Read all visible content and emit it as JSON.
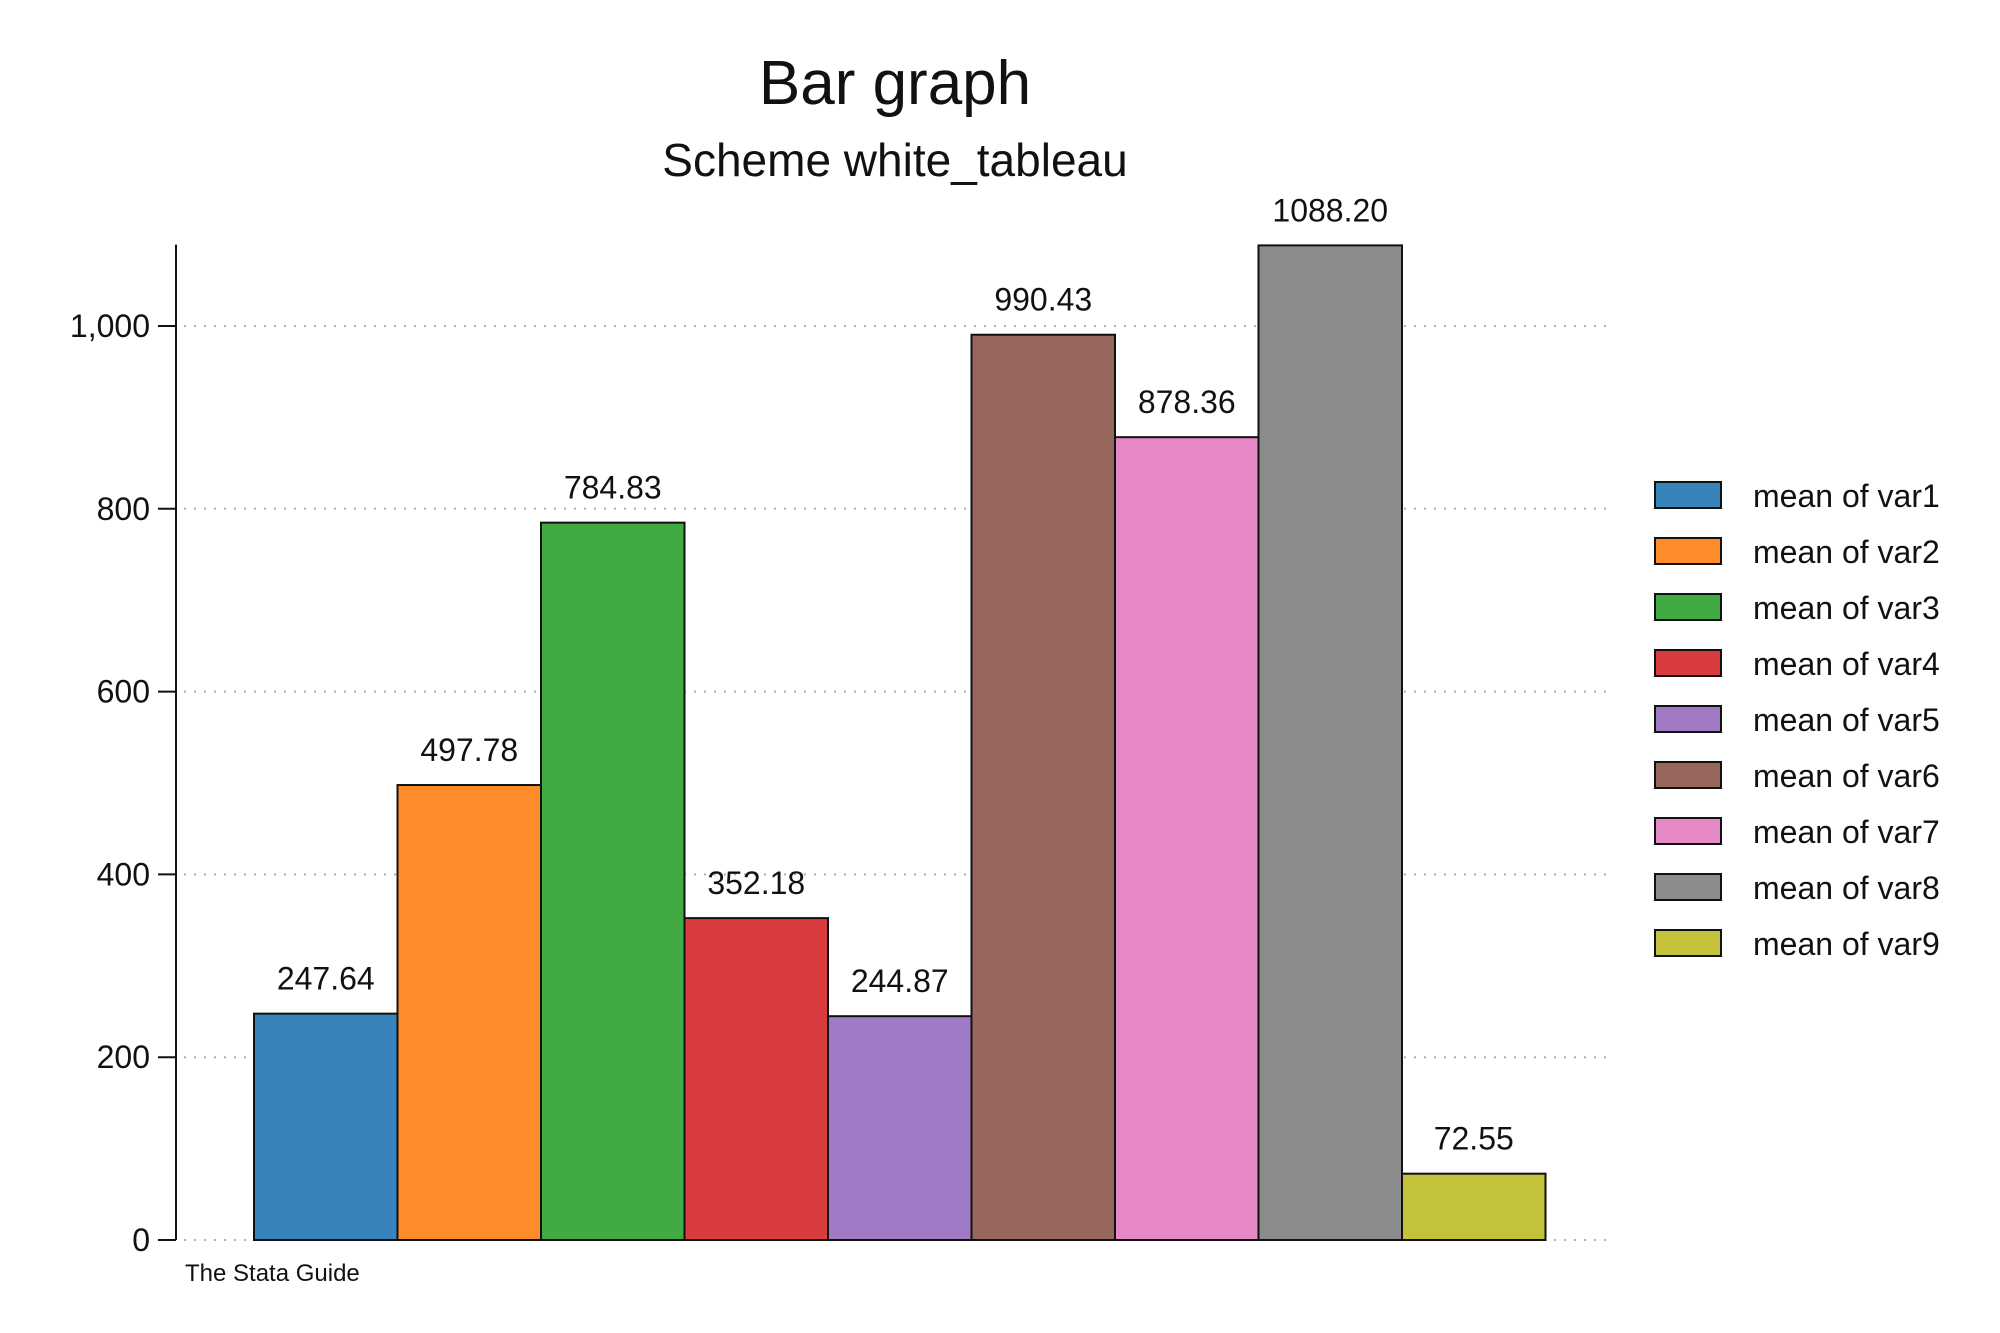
{
  "chart_data": {
    "type": "bar",
    "title": "Bar graph",
    "subtitle": "Scheme white_tableau",
    "note": "The Stata Guide",
    "ylim": [
      0,
      1100
    ],
    "yticks": [
      0,
      200,
      400,
      600,
      800,
      1000
    ],
    "ytick_labels": [
      "0",
      "200",
      "400",
      "600",
      "800",
      "1,000"
    ],
    "grid": true,
    "legend_position": "right",
    "series": [
      {
        "name": "mean of var1",
        "value": 247.64,
        "label": "247.64",
        "color": "#3783BB"
      },
      {
        "name": "mean of var2",
        "value": 497.78,
        "label": "497.78",
        "color": "#FF8C2B"
      },
      {
        "name": "mean of var3",
        "value": 784.83,
        "label": "784.83",
        "color": "#42AA42"
      },
      {
        "name": "mean of var4",
        "value": 352.18,
        "label": "352.18",
        "color": "#D83C3E"
      },
      {
        "name": "mean of var5",
        "value": 244.87,
        "label": "244.87",
        "color": "#A07AC4"
      },
      {
        "name": "mean of var6",
        "value": 990.43,
        "label": "990.43",
        "color": "#97665C"
      },
      {
        "name": "mean of var7",
        "value": 878.36,
        "label": "878.36",
        "color": "#E688C6"
      },
      {
        "name": "mean of var8",
        "value": 1088.2,
        "label": "1088.20",
        "color": "#8C8C8C"
      },
      {
        "name": "mean of var9",
        "value": 72.55,
        "label": "72.55",
        "color": "#C3C33A"
      }
    ]
  }
}
